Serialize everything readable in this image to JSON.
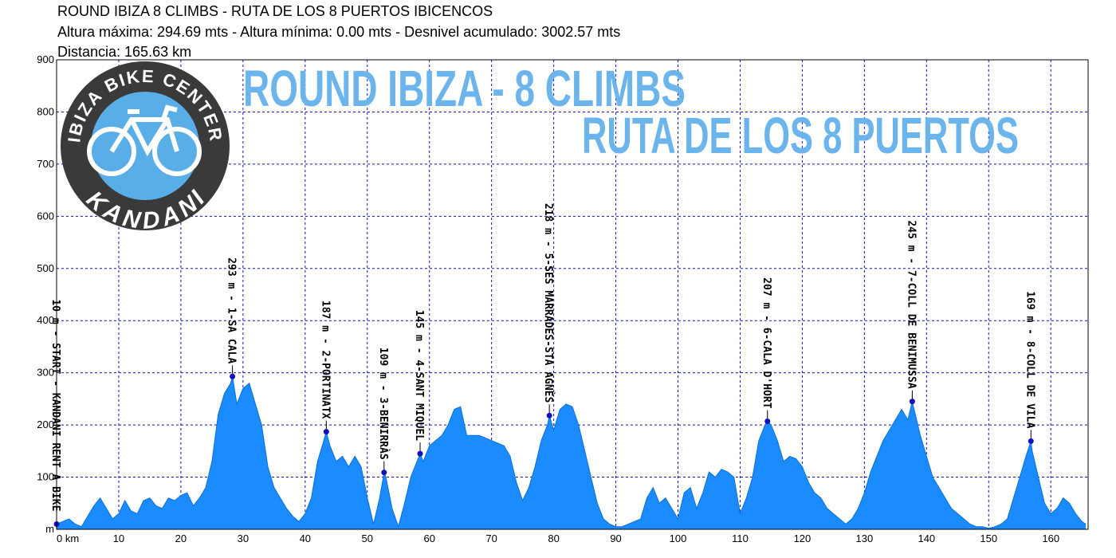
{
  "chart_data": {
    "type": "area",
    "title": "ROUND IBIZA 8 CLIMBS - RUTA DE LOS 8 PUERTOS IBICENCOS",
    "subtitle": "Altura máxima: 294.69 mts - Altura mínima: 0.00 mts - Desnivel acumulado: 3002.57 mts",
    "subtitle2": "Distancia: 165.63 km",
    "annotations": [
      "ROUND IBIZA - 8 CLIMBS",
      "RUTA DE LOS 8 PUERTOS"
    ],
    "logo": {
      "top_text": "IBIZA BIKE CENTER",
      "bottom_text": "KANDANI"
    },
    "color": "#1a8cff",
    "grid": true,
    "xlim": [
      0,
      166
    ],
    "ylim": [
      0,
      900
    ],
    "xticks": [
      {
        "value": 0,
        "label": "0 km"
      },
      10,
      20,
      30,
      40,
      50,
      60,
      70,
      80,
      90,
      100,
      110,
      120,
      130,
      140,
      150,
      160
    ],
    "yticks": [
      {
        "value": 0,
        "label": "m"
      },
      100,
      200,
      300,
      400,
      500,
      600,
      700,
      800,
      900
    ],
    "x": [
      0,
      1,
      2,
      3,
      4,
      5,
      6,
      7,
      8,
      9,
      10,
      11,
      12,
      13,
      14,
      15,
      16,
      17,
      18,
      19,
      20,
      21,
      22,
      23,
      24,
      25,
      26,
      27,
      28,
      28.3,
      29,
      30,
      31,
      32,
      33,
      34,
      35,
      36,
      37,
      38,
      39,
      40,
      41,
      42,
      43,
      43.4,
      44,
      45,
      46,
      47,
      48,
      49,
      50,
      51,
      52,
      52.7,
      53,
      54,
      55,
      56,
      57,
      58,
      58.5,
      59,
      60,
      61,
      62,
      63,
      64,
      65,
      66,
      67,
      68,
      69,
      70,
      71,
      72,
      73,
      74,
      75,
      76,
      77,
      78,
      79,
      79.3,
      80,
      81,
      82,
      83,
      84,
      85,
      86,
      87,
      88,
      89,
      90,
      91,
      92,
      93,
      94,
      95,
      96,
      97,
      98,
      99,
      100,
      101,
      102,
      103,
      104,
      105,
      106,
      107,
      108,
      109,
      110,
      111,
      112,
      113,
      114,
      114.4,
      115,
      116,
      117,
      118,
      119,
      120,
      121,
      122,
      123,
      124,
      125,
      126,
      127,
      128,
      129,
      130,
      131,
      132,
      133,
      134,
      135,
      136,
      137,
      137.7,
      138,
      139,
      140,
      141,
      142,
      143,
      144,
      145,
      146,
      147,
      148,
      149,
      150,
      151,
      152,
      153,
      154,
      155,
      156,
      156.8,
      157,
      158,
      159,
      160,
      161,
      162,
      163,
      164,
      165,
      165.63
    ],
    "values": [
      10,
      15,
      20,
      10,
      5,
      25,
      45,
      60,
      40,
      20,
      30,
      55,
      35,
      30,
      55,
      60,
      45,
      40,
      60,
      55,
      65,
      70,
      45,
      60,
      80,
      130,
      220,
      260,
      280,
      293,
      240,
      270,
      280,
      240,
      200,
      120,
      80,
      60,
      40,
      25,
      15,
      30,
      60,
      130,
      170,
      187,
      160,
      130,
      140,
      120,
      140,
      120,
      60,
      10,
      60,
      109,
      100,
      40,
      5,
      50,
      100,
      130,
      145,
      130,
      160,
      170,
      180,
      200,
      230,
      235,
      180,
      180,
      180,
      175,
      170,
      165,
      160,
      140,
      90,
      55,
      80,
      120,
      170,
      200,
      218,
      190,
      230,
      240,
      235,
      200,
      150,
      100,
      50,
      20,
      10,
      5,
      5,
      10,
      15,
      20,
      60,
      80,
      50,
      60,
      40,
      20,
      70,
      80,
      40,
      70,
      110,
      100,
      115,
      110,
      100,
      30,
      60,
      100,
      170,
      200,
      207,
      200,
      170,
      130,
      140,
      135,
      120,
      90,
      70,
      60,
      40,
      30,
      20,
      10,
      20,
      40,
      70,
      110,
      140,
      170,
      190,
      210,
      230,
      210,
      245,
      230,
      180,
      140,
      100,
      80,
      60,
      40,
      30,
      20,
      10,
      5,
      5,
      2,
      5,
      10,
      20,
      60,
      100,
      140,
      169,
      150,
      100,
      50,
      30,
      40,
      60,
      50,
      30,
      15,
      10
    ],
    "waypoints": [
      {
        "label": "10 m - START - KANDANI RENT A BIKE",
        "km": 0,
        "elevation": 10
      },
      {
        "label": "293 m - 1-SA CALA",
        "km": 28.3,
        "elevation": 293
      },
      {
        "label": "187 m - 2-PORTINATX",
        "km": 43.4,
        "elevation": 187
      },
      {
        "label": "109 m - 3-BENIRRÀS",
        "km": 52.7,
        "elevation": 109
      },
      {
        "label": "145 m - 4-SANT MIQUEL",
        "km": 58.5,
        "elevation": 145
      },
      {
        "label": "218 m - 5-SES MARRADES-STA AGNÈS",
        "km": 79.3,
        "elevation": 218
      },
      {
        "label": "207 m - 6-CALA D'HORT",
        "km": 114.4,
        "elevation": 207
      },
      {
        "label": "245 m - 7-COLL DE BENIMUSSA",
        "km": 137.7,
        "elevation": 245
      },
      {
        "label": "169 m - 8-COLL DE VILA",
        "km": 156.8,
        "elevation": 169
      }
    ]
  }
}
